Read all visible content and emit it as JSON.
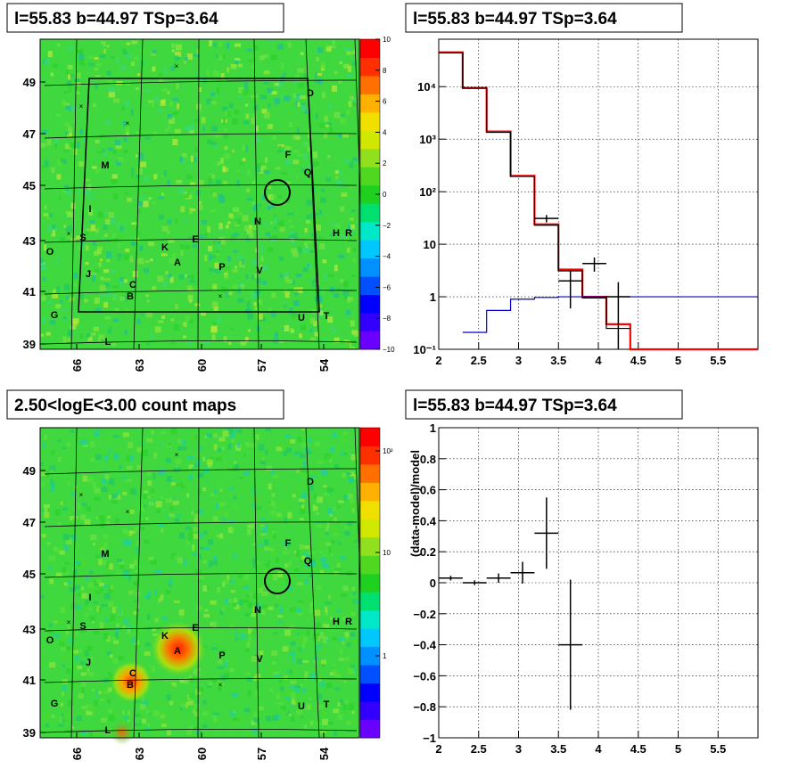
{
  "panels": {
    "tl_title": "l=55.83 b=44.97 TSp=3.64",
    "tr_title": "l=55.83 b=44.97 TSp=3.64",
    "bl_title": "2.50<logE<3.00 count maps",
    "br_title": "l=55.83 b=44.97 TSp=3.64"
  },
  "map_axes": {
    "x_ticks": [
      "66",
      "63",
      "60",
      "57",
      "54"
    ],
    "y_ticks": [
      "49",
      "47",
      "45",
      "43",
      "41",
      "39"
    ]
  },
  "residual_colorbar": {
    "ticks": [
      "10",
      "8",
      "6",
      "4",
      "2",
      "0",
      "−2",
      "−4",
      "−6",
      "−8",
      "−10"
    ],
    "range": [
      -10,
      10
    ]
  },
  "count_colorbar": {
    "ticks": [
      "10²",
      "10",
      "1"
    ]
  },
  "sources": [
    {
      "name": "D"
    },
    {
      "name": "F"
    },
    {
      "name": "Q"
    },
    {
      "name": "M"
    },
    {
      "name": "I"
    },
    {
      "name": "N"
    },
    {
      "name": "H"
    },
    {
      "name": "R"
    },
    {
      "name": "S"
    },
    {
      "name": "O"
    },
    {
      "name": "K"
    },
    {
      "name": "E"
    },
    {
      "name": "A"
    },
    {
      "name": "P"
    },
    {
      "name": "J"
    },
    {
      "name": "V"
    },
    {
      "name": "C"
    },
    {
      "name": "B"
    },
    {
      "name": "G"
    },
    {
      "name": "U"
    },
    {
      "name": "T"
    },
    {
      "name": "L"
    }
  ],
  "chart_data": [
    {
      "type": "line",
      "panel": "spectrum",
      "log_y": true,
      "xlim": [
        2,
        6
      ],
      "ylim": [
        0.1,
        80000
      ],
      "x_tick_labels": [
        "2",
        "2.5",
        "3",
        "3.5",
        "4",
        "4.5",
        "5",
        "5.5"
      ],
      "y_tick_labels": [
        "10⁻¹",
        "1",
        "10",
        "10²",
        "10³",
        "10⁴"
      ],
      "grid": true,
      "series": [
        {
          "style": "histogram",
          "color": "#ff0000",
          "bin_edges": [
            2.0,
            2.3,
            2.6,
            2.9,
            3.2,
            3.5,
            3.8,
            4.1,
            4.4,
            6.0
          ],
          "values": [
            45000,
            9500,
            1400,
            200,
            24,
            3.3,
            1.0,
            0.3,
            0.1
          ]
        },
        {
          "style": "histogram",
          "color": "#000000",
          "bin_edges": [
            2.0,
            2.3,
            2.6,
            2.9,
            3.2,
            3.5,
            3.8,
            4.1,
            4.4
          ],
          "values": [
            44000,
            9300,
            1350,
            195,
            23,
            3.1,
            0.95,
            0.25
          ]
        },
        {
          "style": "histogram",
          "color": "#0000cc",
          "bin_edges": [
            2.3,
            2.6,
            2.9,
            3.2,
            3.5,
            6.0
          ],
          "values": [
            0.21,
            0.55,
            0.9,
            0.97,
            1.0
          ]
        },
        {
          "style": "errorbars",
          "color": "#000000",
          "x": [
            3.35,
            3.65,
            3.95,
            4.25
          ],
          "xerr": 0.15,
          "y": [
            31,
            2.0,
            4.3,
            1.0
          ],
          "yerr_low": [
            26,
            0.6,
            3.0,
            0.1
          ],
          "yerr_high": [
            36,
            3.2,
            5.6,
            1.9
          ]
        }
      ]
    },
    {
      "type": "scatter",
      "panel": "residuals",
      "xlim": [
        2,
        6
      ],
      "ylim": [
        -1,
        1
      ],
      "ylabel": "(data-model)/model",
      "x_tick_labels": [
        "2",
        "2.5",
        "3",
        "3.5",
        "4",
        "4.5",
        "5",
        "5.5"
      ],
      "y_tick_labels": [
        "−1",
        "−0.8",
        "−0.6",
        "−0.4",
        "−0.2",
        "0",
        "0.2",
        "0.4",
        "0.6",
        "0.8",
        "1"
      ],
      "grid": true,
      "x": [
        2.15,
        2.45,
        2.75,
        3.05,
        3.35,
        3.65
      ],
      "xerr": 0.15,
      "y": [
        0.03,
        0.0,
        0.03,
        0.065,
        0.32,
        -0.4
      ],
      "yerr": [
        0.015,
        0.015,
        0.03,
        0.07,
        0.23,
        0.42
      ]
    }
  ]
}
